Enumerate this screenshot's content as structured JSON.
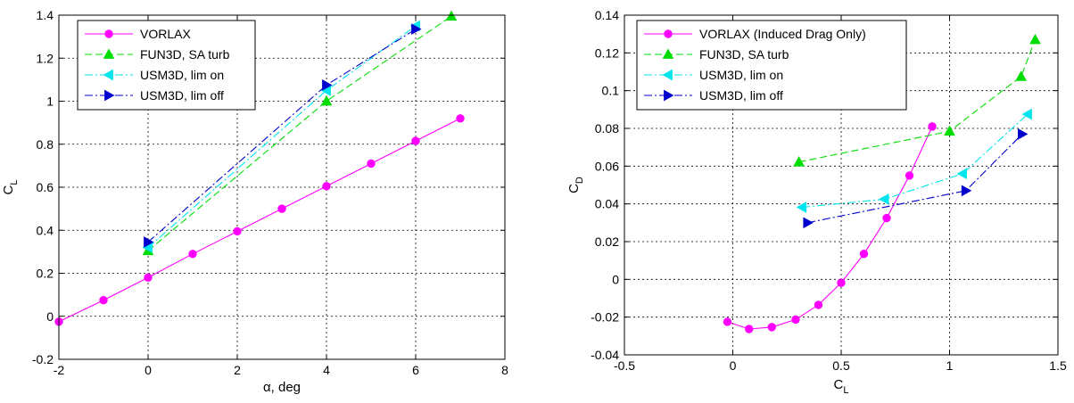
{
  "chart_data": [
    {
      "type": "line",
      "xlabel": "α, deg",
      "ylabel": "C_L",
      "xlim": [
        -2,
        8
      ],
      "ylim": [
        -0.2,
        1.4
      ],
      "xticks": [
        "-2",
        "0",
        "2",
        "4",
        "6",
        "8"
      ],
      "yticks": [
        "-0.2",
        "0",
        "0.2",
        "0.4",
        "0.6",
        "0.8",
        "1",
        "1.2",
        "1.4"
      ],
      "grid": true,
      "legend_position": "top-left",
      "series": [
        {
          "name": "VORLAX",
          "color": "#ff00ff",
          "marker": "circle",
          "line": "solid",
          "x": [
            -2,
            -1,
            0,
            1,
            2,
            3,
            4,
            5,
            6,
            7
          ],
          "y": [
            -0.025,
            0.075,
            0.18,
            0.29,
            0.395,
            0.5,
            0.605,
            0.71,
            0.815,
            0.92
          ]
        },
        {
          "name": "FUN3D, SA turb",
          "color": "#00dd00",
          "marker": "triangle-up",
          "line": "dashed",
          "x": [
            0,
            4,
            6.8
          ],
          "y": [
            0.305,
            1.0,
            1.395
          ]
        },
        {
          "name": "USM3D, lim on",
          "color": "#00e5ee",
          "marker": "triangle-left",
          "line": "dashdot",
          "x": [
            0,
            4,
            6
          ],
          "y": [
            0.32,
            1.05,
            1.35
          ]
        },
        {
          "name": "USM3D, lim off",
          "color": "#0000cc",
          "marker": "triangle-right",
          "line": "dashdot",
          "x": [
            0,
            4,
            6
          ],
          "y": [
            0.345,
            1.075,
            1.335
          ]
        }
      ]
    },
    {
      "type": "line",
      "xlabel": "C_L",
      "ylabel": "C_D",
      "xlim": [
        -0.5,
        1.5
      ],
      "ylim": [
        -0.04,
        0.14
      ],
      "xticks": [
        "-0.5",
        "0",
        "0.5",
        "1",
        "1.5"
      ],
      "yticks": [
        "-0.04",
        "-0.02",
        "0",
        "0.02",
        "0.04",
        "0.06",
        "0.08",
        "0.1",
        "0.12",
        "0.14"
      ],
      "grid": true,
      "legend_position": "top-left",
      "series": [
        {
          "name": "VORLAX (Induced Drag Only)",
          "color": "#ff00ff",
          "marker": "circle",
          "line": "solid",
          "x": [
            -0.025,
            0.075,
            0.18,
            0.29,
            0.395,
            0.5,
            0.605,
            0.71,
            0.815,
            0.92
          ],
          "y": [
            -0.0225,
            -0.0263,
            -0.0253,
            -0.0213,
            -0.0135,
            -0.0018,
            0.0135,
            0.0325,
            0.055,
            0.081
          ]
        },
        {
          "name": "FUN3D, SA turb",
          "color": "#00dd00",
          "marker": "triangle-up",
          "line": "dashed",
          "x": [
            0.305,
            1.0,
            1.33,
            1.395
          ],
          "y": [
            0.0622,
            0.0785,
            0.1075,
            0.127
          ]
        },
        {
          "name": "USM3D, lim on",
          "color": "#00e5ee",
          "marker": "triangle-left",
          "line": "dashdot",
          "x": [
            0.32,
            0.7,
            1.06,
            1.36
          ],
          "y": [
            0.0382,
            0.0425,
            0.056,
            0.0875
          ]
        },
        {
          "name": "USM3D, lim off",
          "color": "#0000cc",
          "marker": "triangle-right",
          "line": "dashdot",
          "x": [
            0.345,
            1.075,
            1.335
          ],
          "y": [
            0.03,
            0.047,
            0.077
          ]
        }
      ]
    }
  ]
}
